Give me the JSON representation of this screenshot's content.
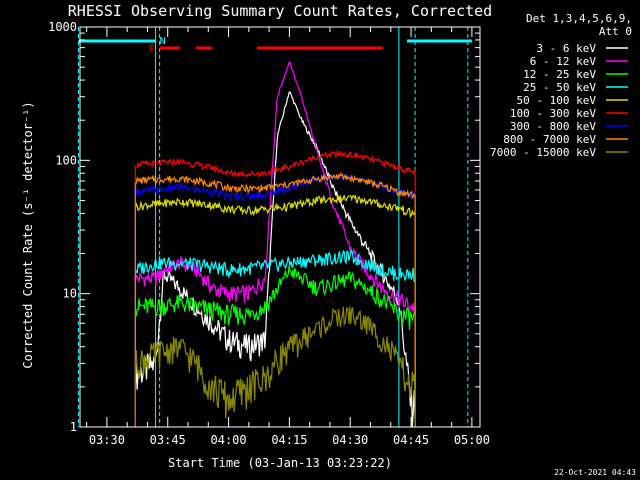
{
  "chart_data": {
    "type": "line",
    "title": "RHESSI Observing Summary Count Rates, Corrected",
    "xlabel": "Start Time (03-Jan-13 03:23:22)",
    "ylabel": "Corrected Count Rate (s⁻¹ detector⁻¹)",
    "ylim": [
      1,
      1000
    ],
    "yscale": "log",
    "xlim": [
      "03:23:22",
      "05:02:00"
    ],
    "x_ticks": [
      "03:30",
      "03:45",
      "04:00",
      "04:15",
      "04:30",
      "04:45",
      "05:00"
    ],
    "y_ticks": [
      "1",
      "10",
      "100",
      "1000"
    ],
    "grid": false,
    "legend_position": "outside-right",
    "legend_header": [
      "Det 1,3,4,5,6,9,",
      "Att 0"
    ],
    "timestamp": "22-Oct-2021 04:43",
    "flags": {
      "F_label": "F",
      "N_label": "N",
      "night_intervals": [
        [
          "03:23",
          "03:42"
        ],
        [
          "04:44",
          "05:00"
        ]
      ],
      "F_intervals": [
        [
          "03:43",
          "03:48"
        ],
        [
          "03:52",
          "03:56"
        ],
        [
          "04:07",
          "04:38"
        ]
      ],
      "vertical_lines": [
        "03:42",
        "04:42"
      ],
      "dashed_lines": [
        "03:23",
        "03:43",
        "04:46",
        "04:59"
      ]
    },
    "data_window": [
      "03:37",
      "04:46"
    ],
    "series": [
      {
        "name": "3 - 6 keV",
        "color": "#ffffff",
        "points": [
          [
            "03:37",
            2.5
          ],
          [
            "03:42",
            3
          ],
          [
            "03:44",
            14
          ],
          [
            "03:48",
            11
          ],
          [
            "03:52",
            8
          ],
          [
            "03:56",
            6
          ],
          [
            "04:00",
            4.5
          ],
          [
            "04:05",
            4
          ],
          [
            "04:09",
            4.5
          ],
          [
            "04:12",
            150
          ],
          [
            "04:15",
            330
          ],
          [
            "04:18",
            200
          ],
          [
            "04:22",
            120
          ],
          [
            "04:26",
            60
          ],
          [
            "04:30",
            35
          ],
          [
            "04:34",
            22
          ],
          [
            "04:38",
            14
          ],
          [
            "04:42",
            9
          ],
          [
            "04:45",
            1.5
          ]
        ]
      },
      {
        "name": "6 - 12 keV",
        "color": "#ff00ff",
        "points": [
          [
            "03:37",
            13
          ],
          [
            "03:42",
            13
          ],
          [
            "03:44",
            15
          ],
          [
            "03:48",
            17
          ],
          [
            "03:52",
            15
          ],
          [
            "03:56",
            11
          ],
          [
            "04:00",
            10
          ],
          [
            "04:05",
            10
          ],
          [
            "04:09",
            13
          ],
          [
            "04:12",
            300
          ],
          [
            "04:15",
            550
          ],
          [
            "04:18",
            300
          ],
          [
            "04:22",
            110
          ],
          [
            "04:26",
            45
          ],
          [
            "04:30",
            22
          ],
          [
            "04:34",
            15
          ],
          [
            "04:38",
            11
          ],
          [
            "04:42",
            9
          ],
          [
            "04:45",
            8
          ]
        ]
      },
      {
        "name": "12 - 25 keV",
        "color": "#00ff00",
        "points": [
          [
            "03:37",
            8
          ],
          [
            "03:42",
            8
          ],
          [
            "03:48",
            8.5
          ],
          [
            "03:56",
            7.5
          ],
          [
            "04:00",
            7
          ],
          [
            "04:05",
            7
          ],
          [
            "04:09",
            8
          ],
          [
            "04:13",
            12
          ],
          [
            "04:15",
            15
          ],
          [
            "04:18",
            13
          ],
          [
            "04:22",
            11
          ],
          [
            "04:30",
            13
          ],
          [
            "04:34",
            11
          ],
          [
            "04:38",
            9
          ],
          [
            "04:42",
            7
          ],
          [
            "04:45",
            6.5
          ]
        ]
      },
      {
        "name": "25 - 50 keV",
        "color": "#00ffff",
        "points": [
          [
            "03:37",
            15
          ],
          [
            "03:42",
            17
          ],
          [
            "03:48",
            17
          ],
          [
            "03:56",
            16
          ],
          [
            "04:00",
            15
          ],
          [
            "04:09",
            16
          ],
          [
            "04:15",
            17
          ],
          [
            "04:22",
            18
          ],
          [
            "04:30",
            19
          ],
          [
            "04:34",
            17
          ],
          [
            "04:38",
            15
          ],
          [
            "04:42",
            14
          ],
          [
            "04:45",
            14
          ]
        ]
      },
      {
        "name": "50 - 100 keV",
        "color": "#dddd00",
        "points": [
          [
            "03:37",
            45
          ],
          [
            "03:42",
            47
          ],
          [
            "03:48",
            49
          ],
          [
            "03:56",
            46
          ],
          [
            "04:00",
            43
          ],
          [
            "04:05",
            42
          ],
          [
            "04:09",
            43
          ],
          [
            "04:15",
            45
          ],
          [
            "04:22",
            50
          ],
          [
            "04:30",
            52
          ],
          [
            "04:34",
            50
          ],
          [
            "04:38",
            46
          ],
          [
            "04:42",
            44
          ],
          [
            "04:45",
            40
          ]
        ]
      },
      {
        "name": "100 - 300 keV",
        "color": "#ff0000",
        "points": [
          [
            "03:37",
            93
          ],
          [
            "03:42",
            95
          ],
          [
            "03:48",
            98
          ],
          [
            "03:56",
            88
          ],
          [
            "04:00",
            80
          ],
          [
            "04:05",
            79
          ],
          [
            "04:09",
            80
          ],
          [
            "04:15",
            90
          ],
          [
            "04:22",
            107
          ],
          [
            "04:27",
            112
          ],
          [
            "04:32",
            108
          ],
          [
            "04:38",
            96
          ],
          [
            "04:42",
            88
          ],
          [
            "04:45",
            82
          ]
        ]
      },
      {
        "name": "300 - 800 keV",
        "color": "#0000ff",
        "points": [
          [
            "03:37",
            58
          ],
          [
            "03:42",
            60
          ],
          [
            "03:48",
            63
          ],
          [
            "03:56",
            58
          ],
          [
            "04:00",
            54
          ],
          [
            "04:05",
            54
          ],
          [
            "04:09",
            55
          ],
          [
            "04:15",
            62
          ],
          [
            "04:22",
            73
          ],
          [
            "04:27",
            76
          ],
          [
            "04:32",
            72
          ],
          [
            "04:38",
            64
          ],
          [
            "04:42",
            58
          ],
          [
            "04:45",
            55
          ]
        ]
      },
      {
        "name": "800 - 7000 keV",
        "color": "#ff8800",
        "points": [
          [
            "03:37",
            70
          ],
          [
            "03:42",
            72
          ],
          [
            "03:48",
            73
          ],
          [
            "03:56",
            67
          ],
          [
            "04:00",
            62
          ],
          [
            "04:05",
            61
          ],
          [
            "04:09",
            62
          ],
          [
            "04:15",
            66
          ],
          [
            "04:22",
            73
          ],
          [
            "04:27",
            76
          ],
          [
            "04:32",
            72
          ],
          [
            "04:38",
            64
          ],
          [
            "04:42",
            58
          ],
          [
            "04:45",
            55
          ]
        ]
      },
      {
        "name": "7000 - 15000 keV",
        "color": "#888800",
        "points": [
          [
            "03:37",
            3
          ],
          [
            "03:42",
            3.5
          ],
          [
            "03:48",
            4
          ],
          [
            "03:52",
            3
          ],
          [
            "03:56",
            2
          ],
          [
            "04:00",
            1.6
          ],
          [
            "04:05",
            2
          ],
          [
            "04:09",
            2.3
          ],
          [
            "04:13",
            3.5
          ],
          [
            "04:18",
            4.5
          ],
          [
            "04:22",
            5.5
          ],
          [
            "04:26",
            6.5
          ],
          [
            "04:30",
            7
          ],
          [
            "04:34",
            6
          ],
          [
            "04:38",
            4.5
          ],
          [
            "04:42",
            3
          ],
          [
            "04:45",
            2
          ]
        ]
      }
    ]
  }
}
